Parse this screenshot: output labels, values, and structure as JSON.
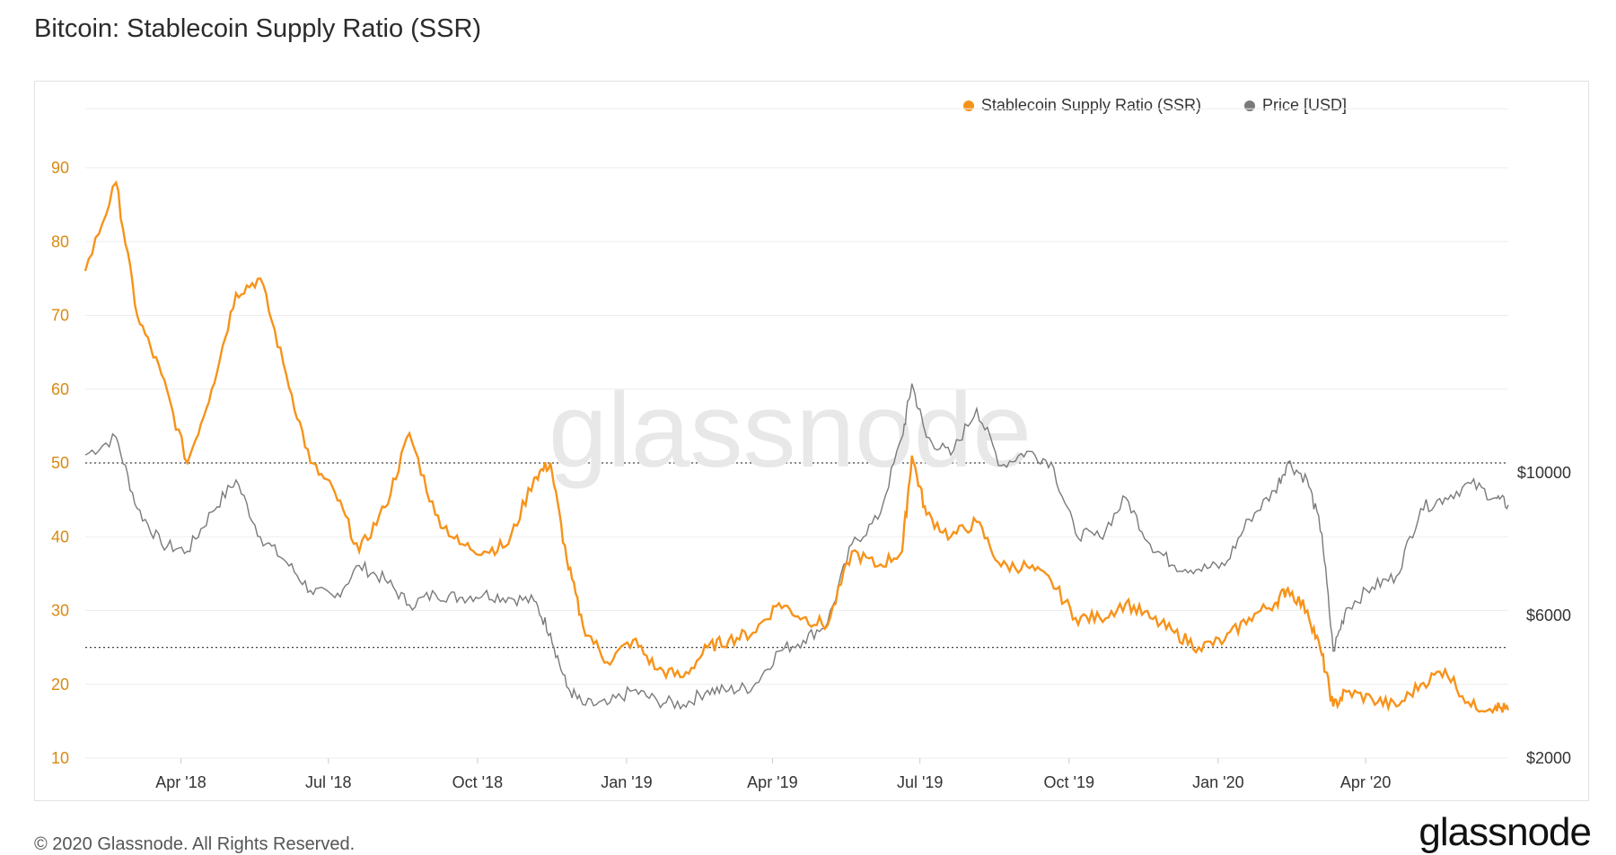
{
  "title": "Bitcoin: Stablecoin Supply Ratio (SSR)",
  "footer": "© 2020 Glassnode. All Rights Reserved.",
  "brand": "glassnode",
  "watermark": "glassnode",
  "colors": {
    "ssr": "#f7931a",
    "price": "#7a7a7a",
    "grid": "#eeeeee",
    "refline": "#444444"
  },
  "chart_data": {
    "type": "line",
    "title": "Bitcoin: Stablecoin Supply Ratio (SSR)",
    "xlabel": "",
    "ylabel": "",
    "x_tick_labels": [
      "Apr '18",
      "Jul '18",
      "Oct '18",
      "Jan '19",
      "Apr '19",
      "Jul '19",
      "Oct '19",
      "Jan '20",
      "Apr '20"
    ],
    "left_axis": {
      "ticks": [
        10,
        20,
        30,
        40,
        50,
        60,
        70,
        80,
        90
      ],
      "range": [
        10,
        98
      ],
      "color": "#d88a12"
    },
    "right_axis": {
      "tick_labels": [
        "$2000",
        "$6000",
        "$10000"
      ],
      "tick_values": [
        2000,
        6000,
        10000
      ],
      "range": [
        2000,
        14000
      ]
    },
    "reference_lines_left_axis": [
      50,
      25
    ],
    "legend": [
      "Stablecoin Supply Ratio (SSR)",
      "Price [USD]"
    ],
    "legend_position": "top-right",
    "x_dates": [
      "2018-02-01",
      "2018-02-20",
      "2018-03-05",
      "2018-03-20",
      "2018-04-05",
      "2018-04-20",
      "2018-05-05",
      "2018-05-20",
      "2018-06-05",
      "2018-06-20",
      "2018-07-05",
      "2018-07-20",
      "2018-08-05",
      "2018-08-20",
      "2018-09-05",
      "2018-09-20",
      "2018-10-05",
      "2018-10-20",
      "2018-11-05",
      "2018-11-15",
      "2018-11-25",
      "2018-12-05",
      "2018-12-20",
      "2019-01-05",
      "2019-01-20",
      "2019-02-05",
      "2019-02-20",
      "2019-03-05",
      "2019-03-20",
      "2019-04-05",
      "2019-04-20",
      "2019-05-05",
      "2019-05-20",
      "2019-06-05",
      "2019-06-20",
      "2019-06-26",
      "2019-07-05",
      "2019-07-20",
      "2019-08-05",
      "2019-08-20",
      "2019-09-05",
      "2019-09-20",
      "2019-10-05",
      "2019-10-20",
      "2019-11-05",
      "2019-11-20",
      "2019-12-05",
      "2019-12-20",
      "2020-01-05",
      "2020-01-20",
      "2020-02-05",
      "2020-02-13",
      "2020-02-25",
      "2020-03-05",
      "2020-03-12",
      "2020-03-20",
      "2020-04-05",
      "2020-04-20",
      "2020-05-05",
      "2020-05-20",
      "2020-06-05",
      "2020-06-20",
      "2020-06-28"
    ],
    "series": [
      {
        "name": "Stablecoin Supply Ratio (SSR)",
        "axis": "left",
        "values": [
          76,
          88,
          70,
          62,
          50,
          60,
          73,
          75,
          62,
          50,
          46,
          38,
          44,
          54,
          43,
          39,
          38,
          39,
          48,
          50,
          37,
          28,
          23,
          26,
          22,
          21,
          25,
          26,
          27,
          31,
          29,
          28,
          38,
          36,
          38,
          51,
          43,
          40,
          42,
          36,
          36,
          34,
          29,
          29,
          31,
          29,
          27,
          25,
          26,
          29,
          31,
          33,
          30,
          24,
          17,
          19,
          18,
          17,
          20,
          22,
          17,
          17,
          16.5
        ]
      },
      {
        "name": "Price [USD]",
        "axis": "right",
        "values": [
          10500,
          11000,
          9000,
          8000,
          7800,
          8900,
          9800,
          8200,
          7500,
          6700,
          6500,
          7400,
          7000,
          6300,
          6600,
          6500,
          6600,
          6500,
          6400,
          5500,
          4000,
          3500,
          3500,
          3900,
          3600,
          3500,
          3900,
          3900,
          4000,
          5000,
          5300,
          5800,
          8000,
          8700,
          11000,
          12500,
          11000,
          10500,
          11800,
          10200,
          10600,
          10300,
          8300,
          8200,
          9300,
          8000,
          7400,
          7300,
          7400,
          8700,
          9500,
          10300,
          9800,
          8300,
          5000,
          6200,
          6800,
          7100,
          9000,
          9300,
          9700,
          9300,
          9100
        ]
      }
    ]
  }
}
